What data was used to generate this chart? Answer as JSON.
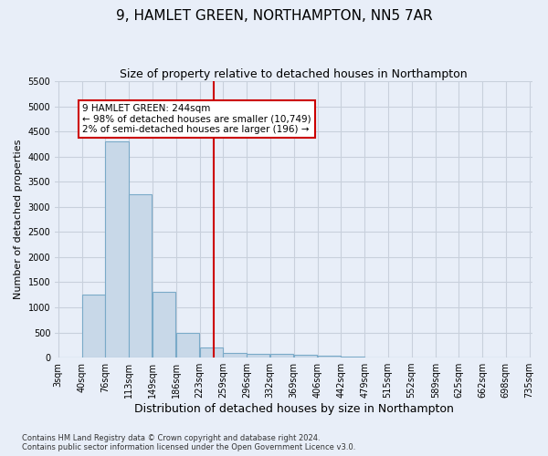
{
  "title": "9, HAMLET GREEN, NORTHAMPTON, NN5 7AR",
  "subtitle": "Size of property relative to detached houses in Northampton",
  "xlabel": "Distribution of detached houses by size in Northampton",
  "ylabel": "Number of detached properties",
  "bin_edges": [
    3,
    40,
    76,
    113,
    149,
    186,
    223,
    259,
    296,
    332,
    369,
    406,
    442,
    479,
    515,
    552,
    589,
    625,
    662,
    698,
    735
  ],
  "bin_labels": [
    "3sqm",
    "40sqm",
    "76sqm",
    "113sqm",
    "149sqm",
    "186sqm",
    "223sqm",
    "259sqm",
    "296sqm",
    "332sqm",
    "369sqm",
    "406sqm",
    "442sqm",
    "479sqm",
    "515sqm",
    "552sqm",
    "589sqm",
    "625sqm",
    "662sqm",
    "698sqm",
    "735sqm"
  ],
  "bar_heights": [
    0,
    1250,
    4300,
    3250,
    1300,
    500,
    200,
    100,
    80,
    70,
    50,
    30,
    20,
    10,
    0,
    0,
    0,
    0,
    0,
    0
  ],
  "bar_color": "#c8d8e8",
  "bar_edge_color": "#7aaac8",
  "grid_color": "#c8d0dc",
  "background_color": "#e8eef8",
  "vline_x": 244,
  "vline_color": "#cc0000",
  "annotation_box": {
    "text_line1": "9 HAMLET GREEN: 244sqm",
    "text_line2": "← 98% of detached houses are smaller (10,749)",
    "text_line3": "2% of semi-detached houses are larger (196) →",
    "box_color": "#ffffff",
    "border_color": "#cc0000"
  },
  "ylim": [
    0,
    5500
  ],
  "yticks": [
    0,
    500,
    1000,
    1500,
    2000,
    2500,
    3000,
    3500,
    4000,
    4500,
    5000,
    5500
  ],
  "footnote": "Contains HM Land Registry data © Crown copyright and database right 2024.\nContains public sector information licensed under the Open Government Licence v3.0.",
  "figsize": [
    6.0,
    5.0
  ],
  "dpi": 100
}
